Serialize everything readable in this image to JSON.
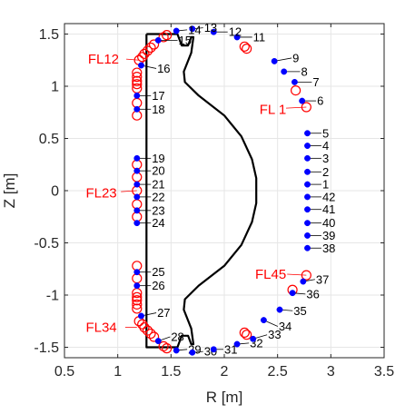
{
  "chart_data": {
    "type": "scatter",
    "title": "",
    "xlabel": "R [m]",
    "ylabel": "Z [m]",
    "xlim": [
      0.5,
      3.5
    ],
    "ylim": [
      -1.6,
      1.6
    ],
    "x_ticks": [
      0.5,
      1,
      1.5,
      2,
      2.5,
      3,
      3.5
    ],
    "x_tick_labels": [
      "0.5",
      "1",
      "1.5",
      "2",
      "2.5",
      "3",
      "3.5"
    ],
    "y_ticks": [
      -1.5,
      -1,
      -0.5,
      0,
      0.5,
      1,
      1.5
    ],
    "y_tick_labels": [
      "-1.5",
      "-1",
      "-0.5",
      "0",
      "0.5",
      "1",
      "1.5"
    ],
    "grid": true,
    "colors": {
      "probe": "#0000ff",
      "flux_loop": "#ff0000",
      "vessel": "#000000",
      "grid": "#e6e6e6",
      "loop_label": "#ff0000"
    },
    "probes": [
      {
        "label": "1",
        "r": 2.78,
        "z": 0.06,
        "lr": 2.92,
        "lz": 0.06
      },
      {
        "label": "2",
        "r": 2.78,
        "z": 0.18,
        "lr": 2.92,
        "lz": 0.18
      },
      {
        "label": "3",
        "r": 2.78,
        "z": 0.31,
        "lr": 2.92,
        "lz": 0.31
      },
      {
        "label": "4",
        "r": 2.78,
        "z": 0.43,
        "lr": 2.92,
        "lz": 0.43
      },
      {
        "label": "5",
        "r": 2.78,
        "z": 0.55,
        "lr": 2.92,
        "lz": 0.55
      },
      {
        "label": "6",
        "r": 2.73,
        "z": 0.86,
        "lr": 2.87,
        "lz": 0.86
      },
      {
        "label": "7",
        "r": 2.66,
        "z": 1.04,
        "lr": 2.83,
        "lz": 1.04
      },
      {
        "label": "8",
        "r": 2.56,
        "z": 1.14,
        "lr": 2.72,
        "lz": 1.14
      },
      {
        "label": "9",
        "r": 2.47,
        "z": 1.24,
        "lr": 2.64,
        "lz": 1.27
      },
      {
        "label": "11",
        "r": 2.12,
        "z": 1.47,
        "lr": 2.27,
        "lz": 1.47
      },
      {
        "label": "12",
        "r": 1.9,
        "z": 1.52,
        "lr": 2.04,
        "lz": 1.52
      },
      {
        "label": "13",
        "r": 1.7,
        "z": 1.55,
        "lr": 1.81,
        "lz": 1.56
      },
      {
        "label": "14",
        "r": 1.55,
        "z": 1.53,
        "lr": 1.66,
        "lz": 1.54
      },
      {
        "label": "15",
        "r": 1.38,
        "z": 1.44,
        "lr": 1.57,
        "lz": 1.44
      },
      {
        "label": "16",
        "r": 1.22,
        "z": 1.2,
        "lr": 1.37,
        "lz": 1.17
      },
      {
        "label": "17",
        "r": 1.18,
        "z": 0.91,
        "lr": 1.32,
        "lz": 0.91
      },
      {
        "label": "18",
        "r": 1.18,
        "z": 0.78,
        "lr": 1.32,
        "lz": 0.78
      },
      {
        "label": "19",
        "r": 1.18,
        "z": 0.31,
        "lr": 1.32,
        "lz": 0.31
      },
      {
        "label": "20",
        "r": 1.18,
        "z": 0.19,
        "lr": 1.32,
        "lz": 0.19
      },
      {
        "label": "21",
        "r": 1.18,
        "z": 0.06,
        "lr": 1.32,
        "lz": 0.06
      },
      {
        "label": "22",
        "r": 1.18,
        "z": -0.06,
        "lr": 1.32,
        "lz": -0.06
      },
      {
        "label": "23",
        "r": 1.18,
        "z": -0.19,
        "lr": 1.32,
        "lz": -0.19
      },
      {
        "label": "24",
        "r": 1.18,
        "z": -0.31,
        "lr": 1.32,
        "lz": -0.31
      },
      {
        "label": "25",
        "r": 1.18,
        "z": -0.78,
        "lr": 1.32,
        "lz": -0.78
      },
      {
        "label": "26",
        "r": 1.18,
        "z": -0.91,
        "lr": 1.32,
        "lz": -0.91
      },
      {
        "label": "27",
        "r": 1.22,
        "z": -1.2,
        "lr": 1.37,
        "lz": -1.17
      },
      {
        "label": "28",
        "r": 1.38,
        "z": -1.44,
        "lr": 1.5,
        "lz": -1.4
      },
      {
        "label": "29",
        "r": 1.55,
        "z": -1.53,
        "lr": 1.66,
        "lz": -1.52
      },
      {
        "label": "30",
        "r": 1.7,
        "z": -1.55,
        "lr": 1.81,
        "lz": -1.54
      },
      {
        "label": "31",
        "r": 1.9,
        "z": -1.52,
        "lr": 2.0,
        "lz": -1.52
      },
      {
        "label": "32",
        "r": 2.12,
        "z": -1.47,
        "lr": 2.24,
        "lz": -1.46
      },
      {
        "label": "33",
        "r": 2.27,
        "z": -1.42,
        "lr": 2.41,
        "lz": -1.38
      },
      {
        "label": "34",
        "r": 2.37,
        "z": -1.24,
        "lr": 2.51,
        "lz": -1.3
      },
      {
        "label": "35",
        "r": 2.52,
        "z": -1.14,
        "lr": 2.65,
        "lz": -1.15
      },
      {
        "label": "36",
        "r": 2.64,
        "z": -0.98,
        "lr": 2.77,
        "lz": -0.99
      },
      {
        "label": "37",
        "r": 2.74,
        "z": -0.87,
        "lr": 2.86,
        "lz": -0.85
      },
      {
        "label": "38",
        "r": 2.78,
        "z": -0.55,
        "lr": 2.92,
        "lz": -0.55
      },
      {
        "label": "39",
        "r": 2.78,
        "z": -0.43,
        "lr": 2.92,
        "lz": -0.43
      },
      {
        "label": "40",
        "r": 2.78,
        "z": -0.31,
        "lr": 2.92,
        "lz": -0.31
      },
      {
        "label": "41",
        "r": 2.78,
        "z": -0.18,
        "lr": 2.92,
        "lz": -0.18
      },
      {
        "label": "42",
        "r": 2.78,
        "z": -0.06,
        "lr": 2.92,
        "lz": -0.06
      }
    ],
    "flux_loops": [
      {
        "r": 2.77,
        "z": 0.8
      },
      {
        "r": 2.67,
        "z": 0.96
      },
      {
        "r": 2.21,
        "z": 1.36
      },
      {
        "r": 2.19,
        "z": 1.38
      },
      {
        "r": 1.46,
        "z": 1.49
      },
      {
        "r": 1.43,
        "z": 1.47
      },
      {
        "r": 1.34,
        "z": 1.4
      },
      {
        "r": 1.31,
        "z": 1.37
      },
      {
        "r": 1.28,
        "z": 1.34
      },
      {
        "r": 1.25,
        "z": 1.31
      },
      {
        "r": 1.23,
        "z": 1.28
      },
      {
        "r": 1.2,
        "z": 1.25
      },
      {
        "r": 1.18,
        "z": 1.13
      },
      {
        "r": 1.18,
        "z": 1.09
      },
      {
        "r": 1.18,
        "z": 1.05
      },
      {
        "r": 1.18,
        "z": 1.02
      },
      {
        "r": 1.18,
        "z": 0.98
      },
      {
        "r": 1.18,
        "z": 0.84
      },
      {
        "r": 1.18,
        "z": 0.72
      },
      {
        "r": 1.18,
        "z": 0.25
      },
      {
        "r": 1.18,
        "z": 0.13
      },
      {
        "r": 1.18,
        "z": 0.0
      },
      {
        "r": 1.18,
        "z": -0.13
      },
      {
        "r": 1.18,
        "z": -0.25
      },
      {
        "r": 1.18,
        "z": -0.72
      },
      {
        "r": 1.18,
        "z": -0.84
      },
      {
        "r": 1.18,
        "z": -0.98
      },
      {
        "r": 1.18,
        "z": -1.02
      },
      {
        "r": 1.18,
        "z": -1.05
      },
      {
        "r": 1.18,
        "z": -1.09
      },
      {
        "r": 1.18,
        "z": -1.13
      },
      {
        "r": 1.2,
        "z": -1.25
      },
      {
        "r": 1.23,
        "z": -1.28
      },
      {
        "r": 1.25,
        "z": -1.31
      },
      {
        "r": 1.28,
        "z": -1.34
      },
      {
        "r": 1.31,
        "z": -1.37
      },
      {
        "r": 1.34,
        "z": -1.4
      },
      {
        "r": 1.43,
        "z": -1.49
      },
      {
        "r": 1.46,
        "z": -1.51
      },
      {
        "r": 2.21,
        "z": -1.38
      },
      {
        "r": 2.19,
        "z": -1.36
      },
      {
        "r": 2.64,
        "z": -0.95
      },
      {
        "r": 2.77,
        "z": -0.81
      }
    ],
    "loop_labels": [
      {
        "text": "FL 1",
        "r": 2.33,
        "z": 0.78,
        "lr1": 2.58,
        "lz1": 0.79,
        "lr2": 2.77,
        "lz2": 0.8
      },
      {
        "text": "FL12",
        "r": 0.72,
        "z": 1.26,
        "lr1": 1.08,
        "lz1": 1.26,
        "lr2": 1.2,
        "lz2": 1.25
      },
      {
        "text": "FL23",
        "r": 0.7,
        "z": -0.02,
        "lr1": 1.03,
        "lz1": -0.01,
        "lr2": 1.18,
        "lz2": 0.0
      },
      {
        "text": "FL34",
        "r": 0.7,
        "z": -1.31,
        "lr1": 1.07,
        "lz1": -1.31,
        "lr2": 1.18,
        "lz2": -1.31
      },
      {
        "text": "FL45",
        "r": 2.29,
        "z": -0.8,
        "lr1": 2.59,
        "lz1": -0.8,
        "lr2": 2.77,
        "lz2": -0.81
      }
    ],
    "vessel": [
      [
        1.27,
        1.5
      ],
      [
        1.56,
        1.5
      ],
      [
        1.6,
        1.39
      ],
      [
        1.66,
        1.39
      ],
      [
        1.69,
        1.47
      ],
      [
        1.71,
        1.47
      ],
      [
        1.69,
        1.32
      ],
      [
        1.62,
        1.14
      ],
      [
        1.63,
        1.04
      ],
      [
        1.76,
        0.91
      ],
      [
        2.0,
        0.72
      ],
      [
        2.16,
        0.52
      ],
      [
        2.26,
        0.3
      ],
      [
        2.3,
        0.12
      ],
      [
        2.3,
        -0.12
      ],
      [
        2.26,
        -0.3
      ],
      [
        2.16,
        -0.52
      ],
      [
        2.0,
        -0.72
      ],
      [
        1.76,
        -0.91
      ],
      [
        1.63,
        -1.04
      ],
      [
        1.62,
        -1.14
      ],
      [
        1.69,
        -1.32
      ],
      [
        1.71,
        -1.47
      ],
      [
        1.69,
        -1.47
      ],
      [
        1.66,
        -1.39
      ],
      [
        1.6,
        -1.39
      ],
      [
        1.56,
        -1.5
      ],
      [
        1.27,
        -1.5
      ],
      [
        1.27,
        1.5
      ]
    ]
  }
}
